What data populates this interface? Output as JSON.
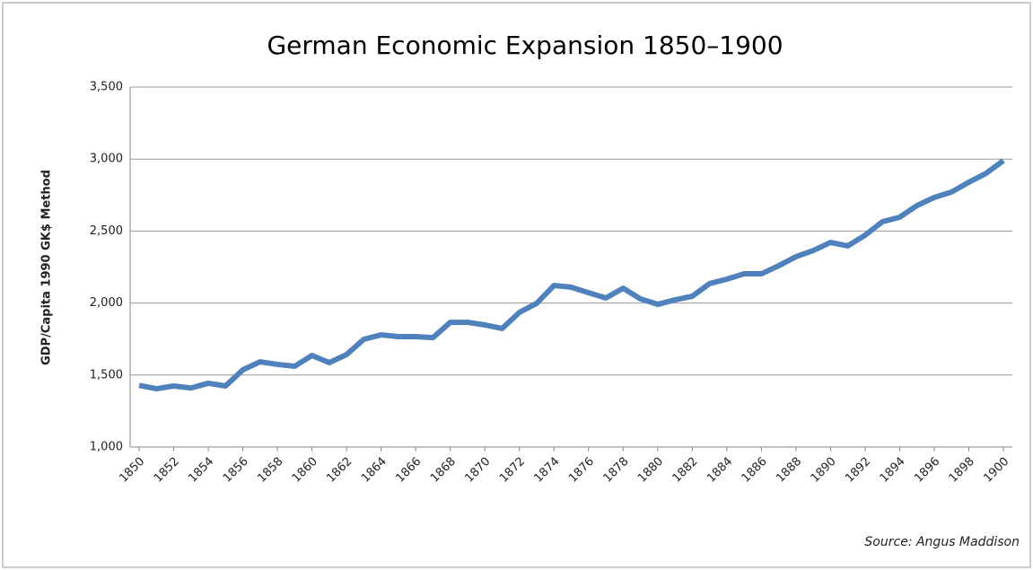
{
  "chart_data": {
    "type": "line",
    "title": "German Economic Expansion 1850–1900",
    "y_label": "GDP/Capita 1990 GK$ Method",
    "annotation": "Source: Angus Maddison",
    "x": [
      1850,
      1851,
      1852,
      1853,
      1854,
      1855,
      1856,
      1857,
      1858,
      1859,
      1860,
      1861,
      1862,
      1863,
      1864,
      1865,
      1866,
      1867,
      1868,
      1869,
      1870,
      1871,
      1872,
      1873,
      1874,
      1875,
      1876,
      1877,
      1878,
      1879,
      1880,
      1881,
      1882,
      1883,
      1884,
      1885,
      1886,
      1887,
      1888,
      1889,
      1890,
      1891,
      1892,
      1893,
      1894,
      1895,
      1896,
      1897,
      1898,
      1899,
      1900
    ],
    "series": [
      {
        "name": "GDP/Capita",
        "color": "#4f81bd",
        "values": [
          1428,
          1405,
          1424,
          1410,
          1443,
          1424,
          1536,
          1592,
          1574,
          1561,
          1636,
          1586,
          1642,
          1748,
          1779,
          1767,
          1767,
          1760,
          1866,
          1866,
          1848,
          1823,
          1935,
          1998,
          2122,
          2110,
          2072,
          2035,
          2103,
          2029,
          1991,
          2022,
          2047,
          2135,
          2166,
          2203,
          2203,
          2259,
          2322,
          2365,
          2421,
          2397,
          2471,
          2565,
          2596,
          2677,
          2733,
          2771,
          2839,
          2901,
          2989
        ]
      }
    ],
    "xlim": [
      1850,
      1900
    ],
    "xticks": [
      1850,
      1852,
      1854,
      1856,
      1858,
      1860,
      1862,
      1864,
      1866,
      1868,
      1870,
      1872,
      1874,
      1876,
      1878,
      1880,
      1882,
      1884,
      1886,
      1888,
      1890,
      1892,
      1894,
      1896,
      1898,
      1900
    ],
    "ylim": [
      1000,
      3500
    ],
    "yticks": [
      {
        "value": 1000,
        "label": "1,000"
      },
      {
        "value": 1500,
        "label": "1,500"
      },
      {
        "value": 2000,
        "label": "2,000"
      },
      {
        "value": 2500,
        "label": "2,500"
      },
      {
        "value": 3000,
        "label": "3,000"
      },
      {
        "value": 3500,
        "label": "3,500"
      }
    ],
    "grid": true
  }
}
